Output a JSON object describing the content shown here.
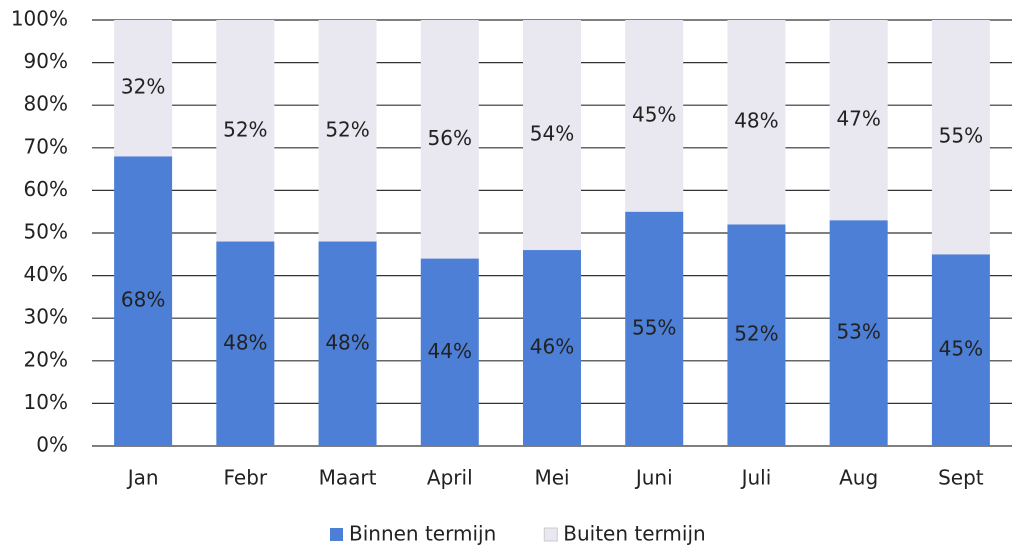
{
  "chart_data": {
    "type": "stacked_bar",
    "categories": [
      "Jan",
      "Febr",
      "Maart",
      "April",
      "Mei",
      "Juni",
      "Juli",
      "Aug",
      "Sept"
    ],
    "series": [
      {
        "name": "Binnen termijn",
        "color": "#4d7fd6",
        "values": [
          68,
          48,
          48,
          44,
          46,
          55,
          52,
          53,
          45
        ],
        "value_labels": [
          "68%",
          "48%",
          "48%",
          "44%",
          "46%",
          "55%",
          "52%",
          "53%",
          "45%"
        ]
      },
      {
        "name": "Buiten termijn",
        "color": "#e9e7ef",
        "values": [
          32,
          52,
          52,
          56,
          54,
          45,
          48,
          47,
          55
        ],
        "value_labels": [
          "32%",
          "52%",
          "52%",
          "56%",
          "54%",
          "45%",
          "48%",
          "47%",
          "55%"
        ]
      }
    ],
    "ylim": [
      0,
      100
    ],
    "yticks": [
      {
        "value": 0,
        "label": "0%"
      },
      {
        "value": 10,
        "label": "10%"
      },
      {
        "value": 20,
        "label": "20%"
      },
      {
        "value": 30,
        "label": "30%"
      },
      {
        "value": 40,
        "label": "40%"
      },
      {
        "value": 50,
        "label": "50%"
      },
      {
        "value": 60,
        "label": "60%"
      },
      {
        "value": 70,
        "label": "70%"
      },
      {
        "value": 80,
        "label": "80%"
      },
      {
        "value": 90,
        "label": "90%"
      },
      {
        "value": 100,
        "label": "100%"
      }
    ],
    "grid": true,
    "legend": "bottom"
  }
}
